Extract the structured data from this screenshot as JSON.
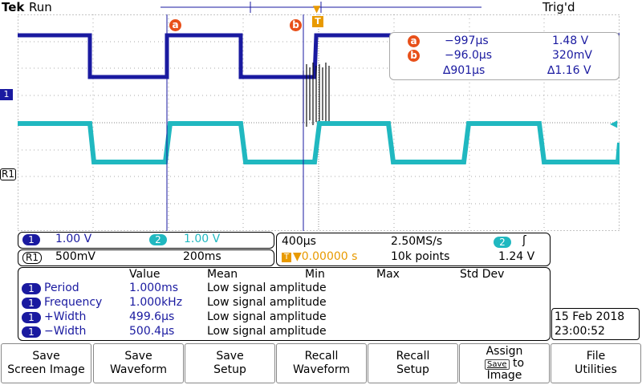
{
  "header": {
    "brand": "Tek",
    "status": "Run",
    "trigger_status": "Trig'd"
  },
  "markers": {
    "a": "a",
    "b": "b",
    "trigger": "T"
  },
  "channel_markers": {
    "ch1": "1",
    "ref1": "R1"
  },
  "cursor_readout": {
    "a_time": "−997µs",
    "a_volt": "1.48 V",
    "b_time": "−96.0µs",
    "b_volt": "320mV",
    "delta_time": "∆901µs",
    "delta_volt": "∆1.16 V"
  },
  "vertical": {
    "ch1_label": "1",
    "ch1_scale": "1.00 V",
    "ch2_label": "2",
    "ch2_scale": "1.00 V",
    "ref_label": "R1",
    "ref_scale": "500mV",
    "ref_time": "200ms"
  },
  "horizontal": {
    "timebase": "400µs",
    "sample_rate": "2.50MS/s",
    "trig_channel": "2",
    "trig_slope": "ʃ",
    "trig_pos": "▼0.00000 s",
    "record_length": "10k points",
    "trig_level": "1.24 V"
  },
  "measurements": {
    "headers": [
      "Value",
      "Mean",
      "Min",
      "Max",
      "Std Dev"
    ],
    "rows": [
      {
        "ch": "1",
        "name": "Period",
        "value": "1.000ms",
        "note": "Low signal amplitude"
      },
      {
        "ch": "1",
        "name": "Frequency",
        "value": "1.000kHz",
        "note": "Low signal amplitude"
      },
      {
        "ch": "1",
        "name": "+Width",
        "value": "499.6µs",
        "note": "Low signal amplitude"
      },
      {
        "ch": "1",
        "name": "−Width",
        "value": "500.4µs",
        "note": "Low signal amplitude"
      }
    ]
  },
  "datetime": {
    "date": "15 Feb  2018",
    "time": "23:00:52"
  },
  "menu": {
    "b1": [
      "Save",
      "Screen Image"
    ],
    "b2": [
      "Save",
      "Waveform"
    ],
    "b3": [
      "Save",
      "Setup"
    ],
    "b4": [
      "Recall",
      "Waveform"
    ],
    "b5": [
      "Recall",
      "Setup"
    ],
    "b6_top": "Assign",
    "b6_key": "Save",
    "b6_to": "to",
    "b6_bottom": "Image",
    "b7": [
      "File",
      "Utilities"
    ]
  },
  "colors": {
    "ch1": "#1a1aa0",
    "ch2": "#20b8c0",
    "accent": "#e8501a",
    "trigger": "#e89a00"
  }
}
